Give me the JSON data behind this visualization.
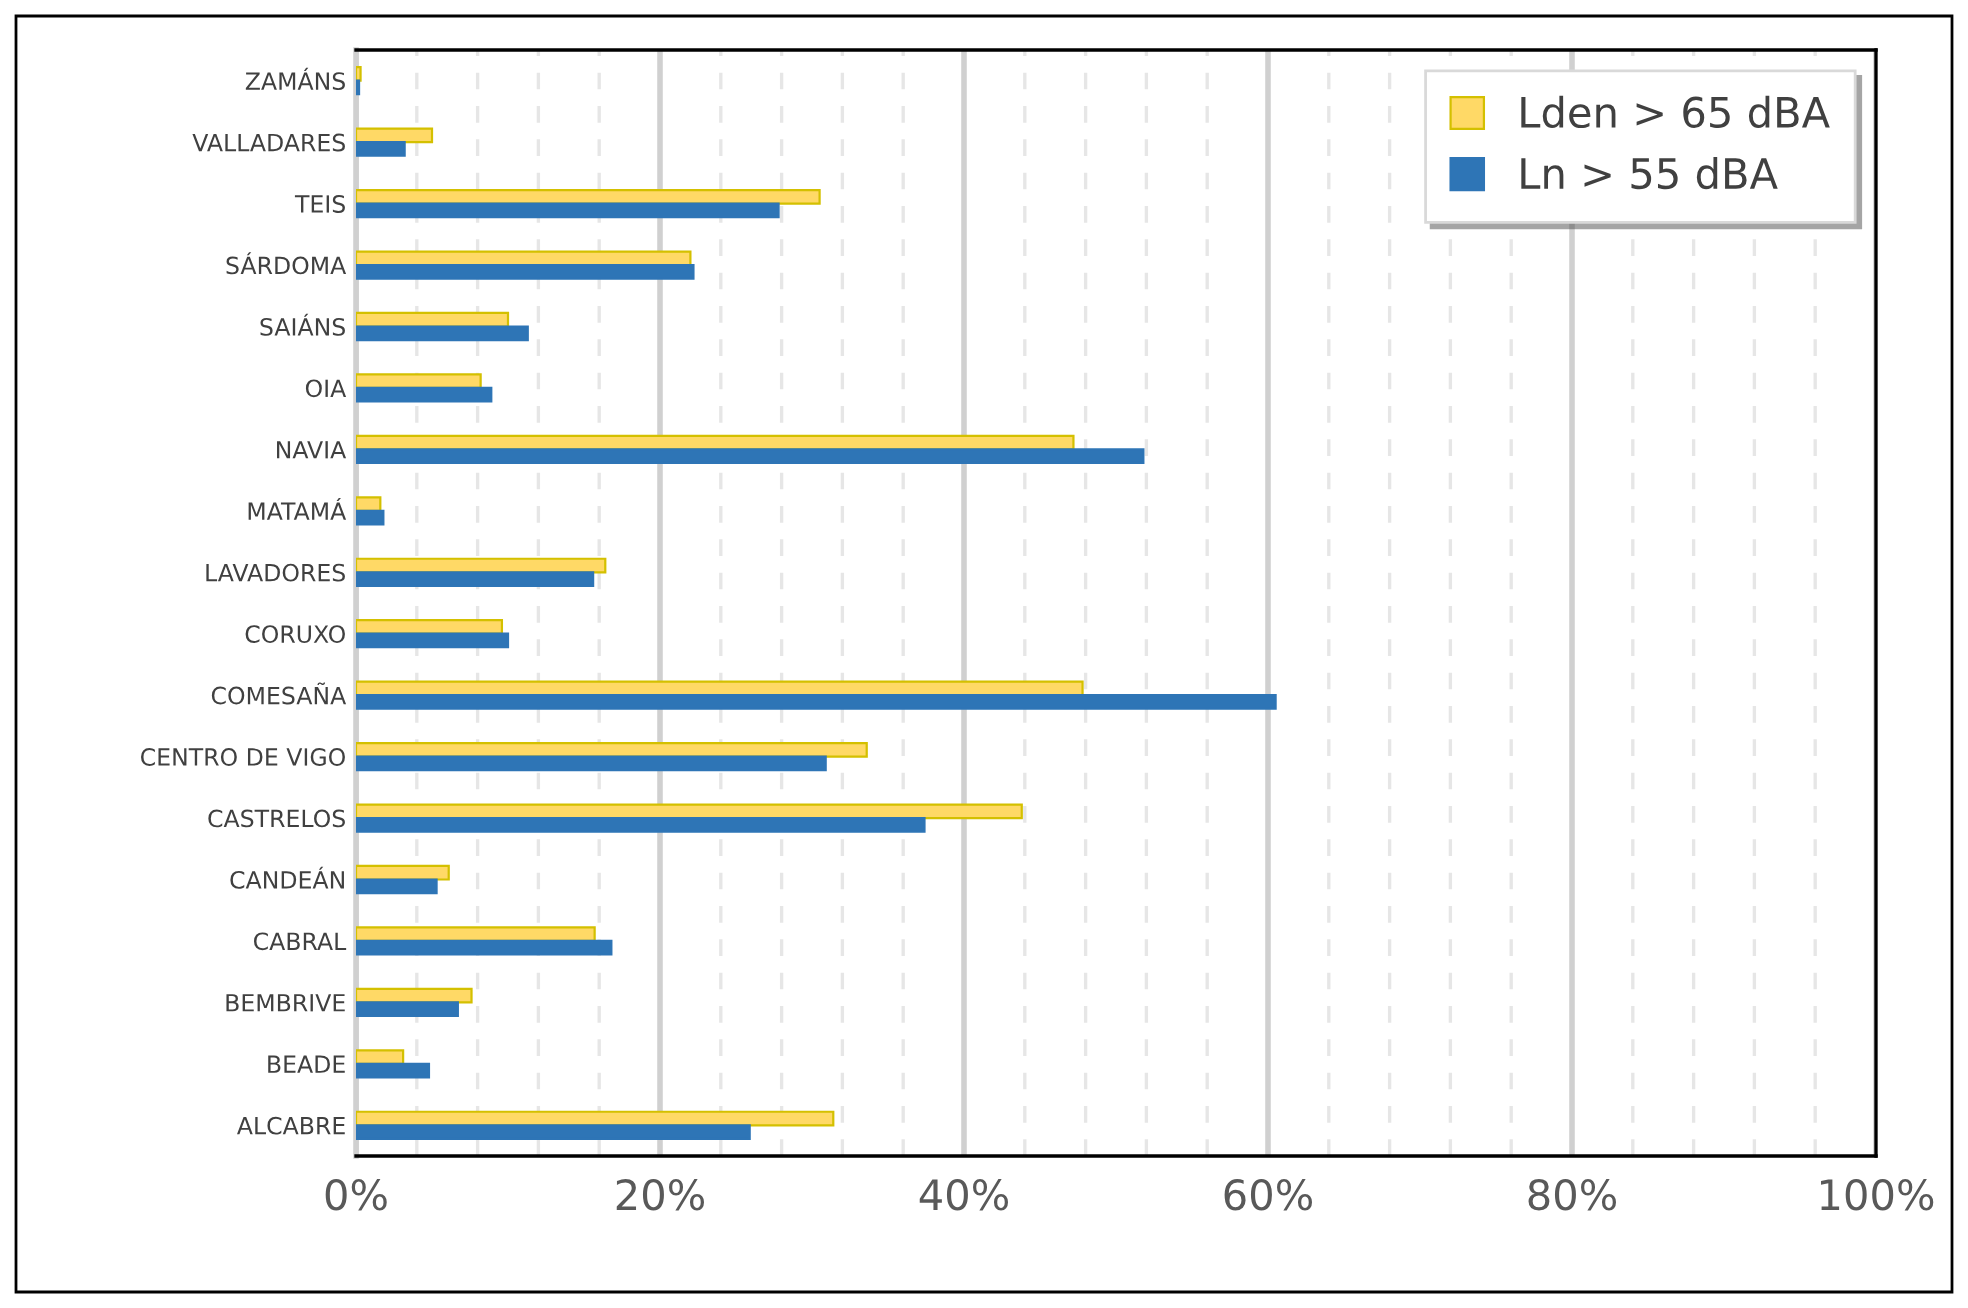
{
  "chart_data": {
    "type": "bar",
    "orientation": "horizontal",
    "categories": [
      "ZAMÁNS",
      "VALLADARES",
      "TEIS",
      "SÁRDOMA",
      "SAIÁNS",
      "OIA",
      "NAVIA",
      "MATAMÁ",
      "LAVADORES",
      "CORUXO",
      "COMESAÑA",
      "CENTRO DE VIGO",
      "CASTRELOS",
      "CANDEÁN",
      "CABRAL",
      "BEMBRIVE",
      "BEADE",
      "ALCABRE"
    ],
    "series": [
      {
        "name": "Lden > 65 dBA",
        "color": "#ffd966",
        "values": [
          0.3,
          5.0,
          30.5,
          22.0,
          10.0,
          8.2,
          47.2,
          1.6,
          16.4,
          9.6,
          47.8,
          33.6,
          43.8,
          6.1,
          15.7,
          7.6,
          3.1,
          31.4
        ]
      },
      {
        "name": "Ln > 55 dBA",
        "color": "#2e75b6",
        "values": [
          0.2,
          3.2,
          27.8,
          22.2,
          11.3,
          8.9,
          51.8,
          1.8,
          15.6,
          10.0,
          60.5,
          30.9,
          37.4,
          5.3,
          16.8,
          6.7,
          4.8,
          25.9
        ]
      }
    ],
    "xlim": [
      0,
      100
    ],
    "xticks": [
      {
        "value": 0,
        "label": "0%"
      },
      {
        "value": 4,
        "label": null
      },
      {
        "value": 8,
        "label": null
      },
      {
        "value": 12,
        "label": null
      },
      {
        "value": 16,
        "label": null
      },
      {
        "value": 20,
        "label": "20%"
      },
      {
        "value": 24,
        "label": null
      },
      {
        "value": 28,
        "label": null
      },
      {
        "value": 32,
        "label": null
      },
      {
        "value": 36,
        "label": null
      },
      {
        "value": 40,
        "label": "40%"
      },
      {
        "value": 44,
        "label": null
      },
      {
        "value": 48,
        "label": null
      },
      {
        "value": 52,
        "label": null
      },
      {
        "value": 56,
        "label": null
      },
      {
        "value": 60,
        "label": "60%"
      },
      {
        "value": 64,
        "label": null
      },
      {
        "value": 68,
        "label": null
      },
      {
        "value": 72,
        "label": null
      },
      {
        "value": 76,
        "label": null
      },
      {
        "value": 80,
        "label": "80%"
      },
      {
        "value": 84,
        "label": null
      },
      {
        "value": 88,
        "label": null
      },
      {
        "value": 92,
        "label": null
      },
      {
        "value": 96,
        "label": null
      },
      {
        "value": 100,
        "label": "100%"
      }
    ],
    "grid": "x",
    "legend": "top right"
  }
}
